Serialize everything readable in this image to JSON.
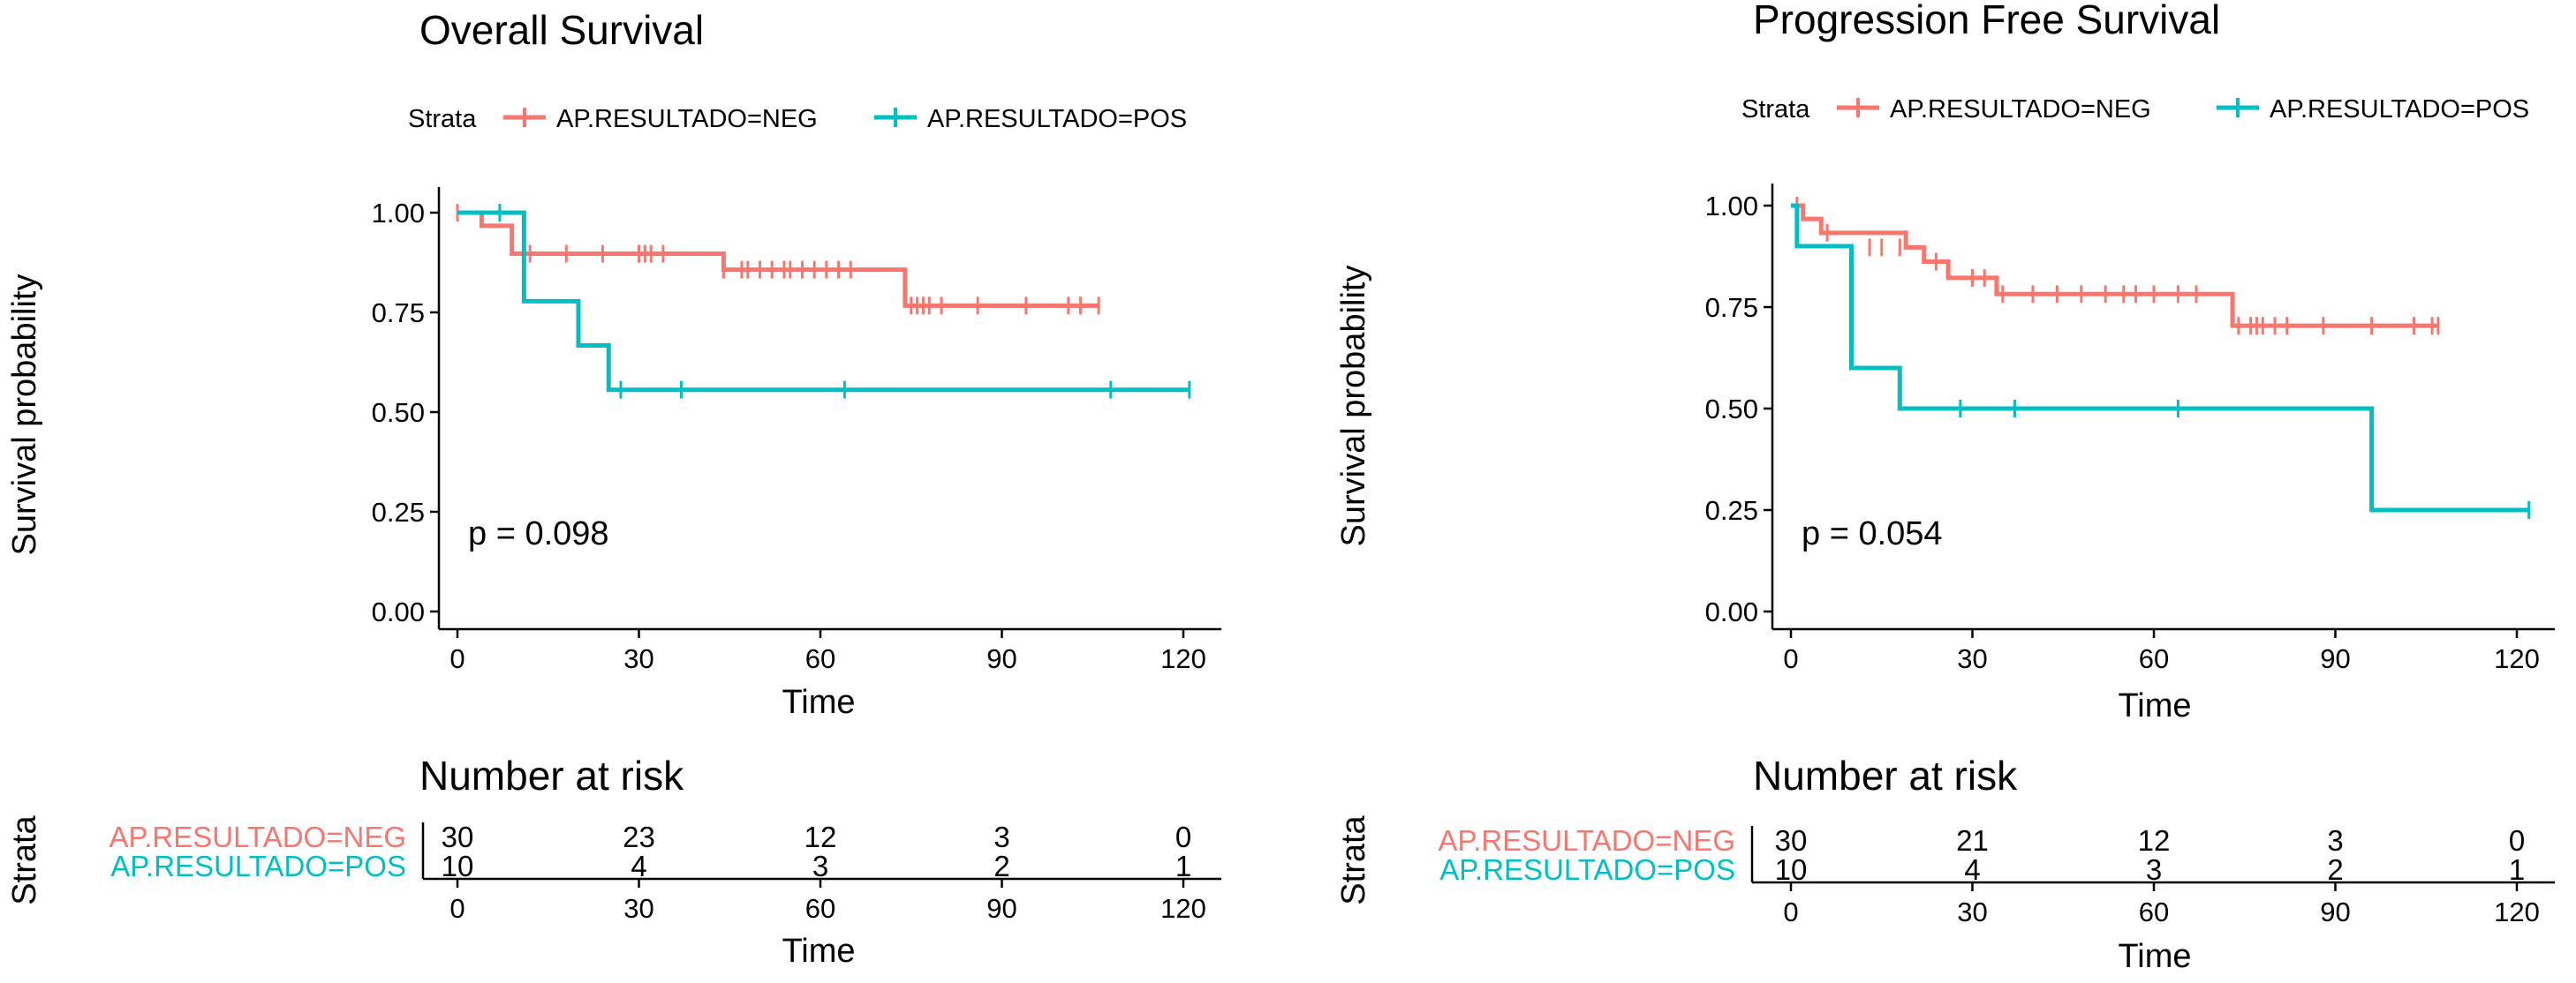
{
  "colors": {
    "neg": "#f8766d",
    "pos": "#00bfc4",
    "text": "#000000",
    "axis": "#000000"
  },
  "chart_data": [
    {
      "type": "line",
      "subtype": "kaplan-meier",
      "title": "Overall Survival",
      "legend": {
        "title": "Strata",
        "position": "top",
        "labels": [
          "AP.RESULTADO=NEG",
          "AP.RESULTADO=POS"
        ]
      },
      "xlabel": "Time",
      "ylabel": "Survival probability",
      "xlim": [
        0,
        120
      ],
      "ylim": [
        0,
        1
      ],
      "xticks": [
        "0",
        "30",
        "60",
        "90",
        "120"
      ],
      "yticks": [
        "0.00",
        "0.25",
        "0.50",
        "0.75",
        "1.00"
      ],
      "pvalue_label": "p = 0.098",
      "series": [
        {
          "name": "AP.RESULTADO=NEG",
          "step_x": [
            0,
            4,
            9,
            44,
            74,
            106
          ],
          "step_y": [
            1.0,
            0.967,
            0.897,
            0.857,
            0.767,
            0.767
          ],
          "censor_x": [
            0,
            12,
            18,
            24,
            30,
            31,
            32,
            34,
            44,
            47,
            48,
            50,
            52,
            54,
            55,
            57,
            59,
            61,
            63,
            65,
            75,
            76,
            77,
            78,
            80,
            86,
            94,
            101,
            103,
            106
          ],
          "censor_y": [
            1.0,
            0.897,
            0.897,
            0.897,
            0.897,
            0.897,
            0.897,
            0.897,
            0.857,
            0.857,
            0.857,
            0.857,
            0.857,
            0.857,
            0.857,
            0.857,
            0.857,
            0.857,
            0.857,
            0.857,
            0.767,
            0.767,
            0.767,
            0.767,
            0.767,
            0.767,
            0.767,
            0.767,
            0.767,
            0.767
          ]
        },
        {
          "name": "AP.RESULTADO=POS",
          "step_x": [
            0,
            11,
            20,
            25,
            121
          ],
          "step_y": [
            1.0,
            0.778,
            0.667,
            0.556,
            0.556
          ],
          "censor_x": [
            7,
            27,
            37,
            64,
            108,
            121
          ],
          "censor_y": [
            1.0,
            0.556,
            0.556,
            0.556,
            0.556,
            0.556
          ]
        }
      ],
      "risk_table": {
        "title": "Number at risk",
        "ylabel": "Strata",
        "xlabel": "Time",
        "times": [
          "0",
          "30",
          "60",
          "90",
          "120"
        ],
        "rows": [
          {
            "label": "AP.RESULTADO=NEG",
            "counts": [
              "30",
              "23",
              "12",
              "3",
              "0"
            ]
          },
          {
            "label": "AP.RESULTADO=POS",
            "counts": [
              "10",
              "4",
              "3",
              "2",
              "1"
            ]
          }
        ]
      }
    },
    {
      "type": "line",
      "subtype": "kaplan-meier",
      "title": "Progression Free Survival",
      "legend": {
        "title": "Strata",
        "position": "top",
        "labels": [
          "AP.RESULTADO=NEG",
          "AP.RESULTADO=POS"
        ]
      },
      "xlabel": "Time",
      "ylabel": "Survival probability",
      "xlim": [
        0,
        120
      ],
      "ylim": [
        0,
        1
      ],
      "xticks": [
        "0",
        "30",
        "60",
        "90",
        "120"
      ],
      "yticks": [
        "0.00",
        "0.25",
        "0.50",
        "0.75",
        "1.00"
      ],
      "pvalue_label": "p = 0.054",
      "series": [
        {
          "name": "AP.RESULTADO=NEG",
          "step_x": [
            0,
            2,
            4,
            5,
            19,
            22,
            26,
            34,
            73,
            107
          ],
          "step_y": [
            1.0,
            0.967,
            0.967,
            0.933,
            0.897,
            0.862,
            0.822,
            0.782,
            0.704,
            0.704
          ],
          "censor_x": [
            1,
            6,
            13,
            15,
            18,
            24,
            30,
            32,
            35,
            40,
            44,
            48,
            52,
            55,
            57,
            60,
            64,
            67,
            74,
            76,
            77,
            78,
            80,
            82,
            88,
            96,
            103,
            106,
            107
          ],
          "censor_y": [
            1.0,
            0.933,
            0.897,
            0.897,
            0.897,
            0.862,
            0.822,
            0.822,
            0.782,
            0.782,
            0.782,
            0.782,
            0.782,
            0.782,
            0.782,
            0.782,
            0.782,
            0.782,
            0.704,
            0.704,
            0.704,
            0.704,
            0.704,
            0.704,
            0.704,
            0.704,
            0.704,
            0.704,
            0.704
          ]
        },
        {
          "name": "AP.RESULTADO=POS",
          "step_x": [
            0,
            1,
            10,
            18,
            96,
            122
          ],
          "step_y": [
            1.0,
            0.9,
            0.6,
            0.5,
            0.25,
            0.25
          ],
          "censor_x": [
            28,
            37,
            64,
            122
          ],
          "censor_y": [
            0.5,
            0.5,
            0.5,
            0.25
          ]
        }
      ],
      "risk_table": {
        "title": "Number at risk",
        "ylabel": "Strata",
        "xlabel": "Time",
        "times": [
          "0",
          "30",
          "60",
          "90",
          "120"
        ],
        "rows": [
          {
            "label": "AP.RESULTADO=NEG",
            "counts": [
              "30",
              "21",
              "12",
              "3",
              "0"
            ]
          },
          {
            "label": "AP.RESULTADO=POS",
            "counts": [
              "10",
              "4",
              "3",
              "2",
              "1"
            ]
          }
        ]
      }
    }
  ]
}
